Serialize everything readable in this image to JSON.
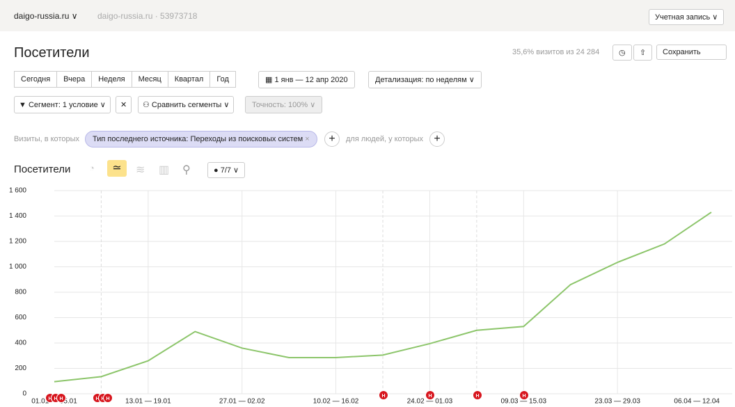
{
  "header": {
    "site": "daigo-russia.ru",
    "counter": "daigo-russia.ru · 53973718",
    "account": "Учетная запись"
  },
  "toolbar": {
    "title": "Посетители",
    "sample": "35,6% визитов из 24 284",
    "save": "Сохранить",
    "periods": [
      "Сегодня",
      "Вчера",
      "Неделя",
      "Месяц",
      "Квартал",
      "Год"
    ],
    "date_range": "1 янв — 12 апр 2020",
    "detail": "Детализация: по неделям"
  },
  "segments": {
    "segment": "Сегмент: 1 условие",
    "compare": "Сравнить сегменты",
    "accuracy": "Точность: 100%"
  },
  "filter": {
    "prefix": "Визиты, в которых",
    "condition": "Тип последнего источника: Переходы из поисковых систем",
    "people": "для людей, у которых"
  },
  "chart_header": {
    "title": "Посетители",
    "series_count": "7/7"
  },
  "markers": {
    "label": "Н"
  },
  "chart_data": {
    "type": "line",
    "color": "#8cc56a",
    "categories": [
      "01.01 — 05.01",
      null,
      "13.01 — 19.01",
      null,
      "27.01 — 02.02",
      null,
      "10.02 — 16.02",
      null,
      "24.02 — 01.03",
      null,
      "09.03 — 15.03",
      null,
      "23.03 — 29.03",
      null,
      "06.04 — 12.04"
    ],
    "values": [
      95,
      135,
      260,
      490,
      360,
      285,
      285,
      305,
      395,
      500,
      530,
      860,
      1035,
      1180,
      1430
    ],
    "ylim": [
      0,
      1600
    ],
    "yticks": [
      0,
      200,
      400,
      600,
      800,
      {
        "value": 1000,
        "label": "1 000"
      },
      {
        "value": 1200,
        "label": "1 200"
      },
      {
        "value": 1400,
        "label": "1 400"
      },
      {
        "value": 1600,
        "label": "1 600"
      }
    ],
    "grid": true
  }
}
